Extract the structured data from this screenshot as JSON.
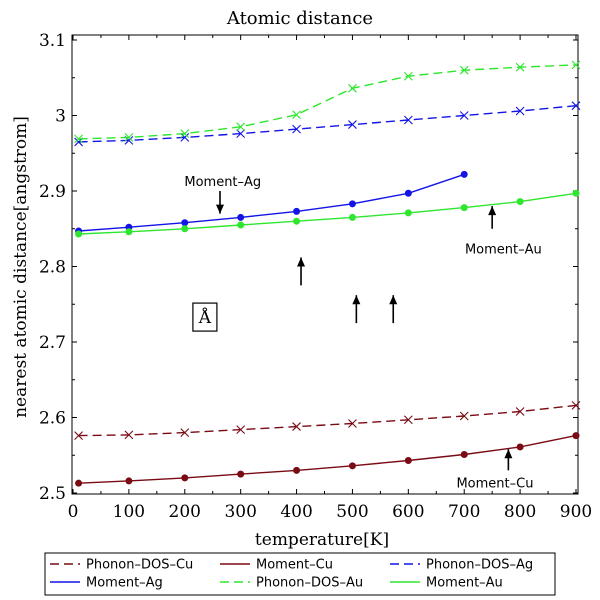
{
  "chart_data": {
    "type": "line",
    "title": "Atomic distance",
    "xlabel": "temperature[K]",
    "ylabel": "nearest atomic distance[angstrom]",
    "xlim": [
      0,
      900
    ],
    "ylim": [
      2.5,
      3.1
    ],
    "xticks": [
      "0",
      "100",
      "200",
      "300",
      "400",
      "500",
      "600",
      "700",
      "800",
      "900"
    ],
    "yticks": [
      "2.5",
      "2.6",
      "2.7",
      "2.8",
      "2.9",
      "3",
      "3.1"
    ],
    "grid": false,
    "legend_position": "bottom",
    "series": [
      {
        "name": "Phonon–DOS–Cu",
        "color": "#7a0a14",
        "dash": "dashed",
        "marker": "x",
        "x": [
          10,
          100,
          200,
          300,
          400,
          500,
          600,
          700,
          800,
          900
        ],
        "y": [
          2.576,
          2.577,
          2.58,
          2.584,
          2.588,
          2.592,
          2.597,
          2.602,
          2.608,
          2.616
        ]
      },
      {
        "name": "Moment–Cu",
        "color": "#7a0a14",
        "dash": "solid",
        "marker": "dot",
        "x": [
          10,
          100,
          200,
          300,
          400,
          500,
          600,
          700,
          800,
          900
        ],
        "y": [
          2.513,
          2.516,
          2.52,
          2.525,
          2.53,
          2.536,
          2.543,
          2.551,
          2.561,
          2.576
        ]
      },
      {
        "name": "Phonon–DOS–Ag",
        "color": "#1414e6",
        "dash": "dashed",
        "marker": "x",
        "x": [
          10,
          100,
          200,
          300,
          400,
          500,
          600,
          700,
          800,
          900
        ],
        "y": [
          2.965,
          2.967,
          2.971,
          2.976,
          2.982,
          2.988,
          2.994,
          3.0,
          3.006,
          3.013
        ]
      },
      {
        "name": "Moment–Ag",
        "color": "#1414e6",
        "dash": "solid",
        "marker": "dot",
        "x": [
          10,
          100,
          200,
          300,
          400,
          500,
          600,
          700
        ],
        "y": [
          2.847,
          2.852,
          2.858,
          2.865,
          2.873,
          2.883,
          2.897,
          2.922
        ]
      },
      {
        "name": "Phonon–DOS–Au",
        "color": "#2ee62e",
        "dash": "dashed",
        "marker": "x",
        "x": [
          10,
          100,
          200,
          300,
          400,
          500,
          600,
          700,
          800,
          900
        ],
        "y": [
          2.969,
          2.971,
          2.976,
          2.985,
          3.001,
          3.036,
          3.052,
          3.06,
          3.064,
          3.067
        ]
      },
      {
        "name": "Moment–Au",
        "color": "#2ee62e",
        "dash": "solid",
        "marker": "dot",
        "x": [
          10,
          100,
          200,
          300,
          400,
          500,
          600,
          700,
          800,
          900
        ],
        "y": [
          2.843,
          2.846,
          2.85,
          2.855,
          2.86,
          2.865,
          2.871,
          2.878,
          2.886,
          2.897
        ]
      }
    ],
    "annotations": [
      {
        "text": "Moment–Ag",
        "x": 268,
        "y": 2.913
      },
      {
        "text": "Moment–Au",
        "x": 770,
        "y": 2.824
      },
      {
        "text": "Moment–Cu",
        "x": 755,
        "y": 2.514
      },
      {
        "text": "Å",
        "x": 236,
        "y": 2.733,
        "boxed": true
      }
    ],
    "arrows": [
      {
        "x": 263,
        "y_tail": 2.9,
        "y_head": 2.87,
        "dir": "down"
      },
      {
        "x": 750,
        "y_tail": 2.85,
        "y_head": 2.88,
        "dir": "up"
      },
      {
        "x": 408,
        "y_tail": 2.775,
        "y_head": 2.812,
        "dir": "up"
      },
      {
        "x": 507,
        "y_tail": 2.725,
        "y_head": 2.762,
        "dir": "up"
      },
      {
        "x": 573,
        "y_tail": 2.725,
        "y_head": 2.762,
        "dir": "up"
      },
      {
        "x": 779,
        "y_tail": 2.53,
        "y_head": 2.558,
        "dir": "up"
      }
    ]
  }
}
